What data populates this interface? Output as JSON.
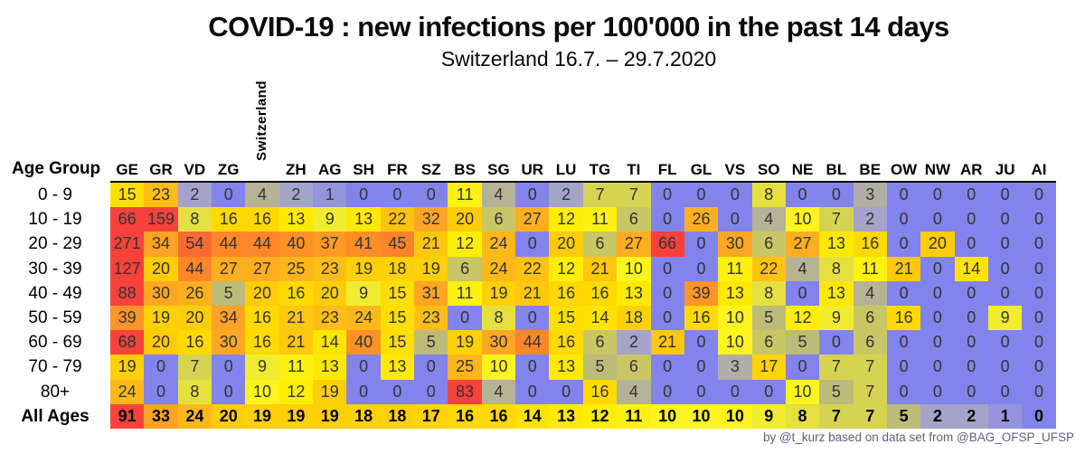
{
  "title": "COVID-19 : new infections per 100'000 in the past 14 days",
  "subtitle": "Switzerland 16.7. – 29.7.2020",
  "credit": "by @t_kurz based on data set from @BAG_OFSP_UFSP",
  "chart_data": {
    "type": "heatmap",
    "row_header_label": "Age Group",
    "columns": [
      "GE",
      "GR",
      "VD",
      "ZG",
      "Switzerland",
      "ZH",
      "AG",
      "SH",
      "FR",
      "SZ",
      "BS",
      "SG",
      "UR",
      "LU",
      "TG",
      "TI",
      "FL",
      "GL",
      "VS",
      "SO",
      "NE",
      "BL",
      "BE",
      "OW",
      "NW",
      "AR",
      "JU",
      "AI"
    ],
    "highlight_column": "Switzerland",
    "rows": [
      {
        "label": "0 - 9",
        "bold": false,
        "values": [
          15,
          23,
          2,
          0,
          4,
          2,
          1,
          0,
          0,
          0,
          11,
          4,
          0,
          2,
          7,
          7,
          0,
          0,
          0,
          8,
          0,
          0,
          3,
          0,
          0,
          0,
          0,
          0
        ]
      },
      {
        "label": "10 - 19",
        "bold": false,
        "values": [
          66,
          159,
          8,
          16,
          16,
          13,
          9,
          13,
          22,
          32,
          20,
          6,
          27,
          12,
          11,
          6,
          0,
          26,
          0,
          4,
          10,
          7,
          2,
          0,
          0,
          0,
          0,
          0
        ]
      },
      {
        "label": "20 - 29",
        "bold": false,
        "values": [
          271,
          34,
          54,
          44,
          44,
          40,
          37,
          41,
          45,
          21,
          12,
          24,
          0,
          20,
          6,
          27,
          66,
          0,
          30,
          6,
          27,
          13,
          16,
          0,
          20,
          0,
          0,
          0
        ]
      },
      {
        "label": "30 - 39",
        "bold": false,
        "values": [
          127,
          20,
          44,
          27,
          27,
          25,
          23,
          19,
          18,
          19,
          6,
          24,
          22,
          12,
          21,
          10,
          0,
          0,
          11,
          22,
          4,
          8,
          11,
          21,
          0,
          14,
          0,
          0
        ]
      },
      {
        "label": "40 - 49",
        "bold": false,
        "values": [
          88,
          30,
          26,
          5,
          20,
          16,
          20,
          9,
          15,
          31,
          11,
          19,
          21,
          16,
          16,
          13,
          0,
          39,
          13,
          8,
          0,
          13,
          4,
          0,
          0,
          0,
          0,
          0
        ]
      },
      {
        "label": "50 - 59",
        "bold": false,
        "values": [
          39,
          19,
          20,
          34,
          16,
          21,
          23,
          24,
          15,
          23,
          0,
          8,
          0,
          15,
          14,
          18,
          0,
          16,
          10,
          5,
          12,
          9,
          6,
          16,
          0,
          0,
          9,
          0
        ]
      },
      {
        "label": "60 - 69",
        "bold": false,
        "values": [
          68,
          20,
          16,
          30,
          16,
          21,
          14,
          40,
          15,
          5,
          19,
          30,
          44,
          16,
          6,
          2,
          21,
          0,
          10,
          6,
          5,
          0,
          6,
          0,
          0,
          0,
          0,
          0
        ]
      },
      {
        "label": "70 - 79",
        "bold": false,
        "values": [
          19,
          0,
          7,
          0,
          9,
          11,
          13,
          0,
          13,
          0,
          25,
          10,
          0,
          13,
          5,
          6,
          0,
          0,
          3,
          17,
          0,
          7,
          7,
          0,
          0,
          0,
          0,
          0
        ]
      },
      {
        "label": "80+",
        "bold": false,
        "values": [
          24,
          0,
          8,
          0,
          10,
          12,
          19,
          0,
          0,
          0,
          83,
          4,
          0,
          0,
          16,
          4,
          0,
          0,
          0,
          0,
          10,
          5,
          7,
          0,
          0,
          0,
          0,
          0
        ]
      },
      {
        "label": "All Ages",
        "bold": true,
        "values": [
          91,
          33,
          24,
          20,
          19,
          19,
          19,
          18,
          18,
          17,
          16,
          16,
          14,
          13,
          12,
          11,
          10,
          10,
          10,
          9,
          8,
          7,
          7,
          5,
          2,
          2,
          1,
          0
        ]
      }
    ],
    "colormap_stops": [
      [
        0,
        "#8383ec"
      ],
      [
        1,
        "#9494dd"
      ],
      [
        2,
        "#a4a4cb"
      ],
      [
        3,
        "#b0aea6"
      ],
      [
        4,
        "#b5b396"
      ],
      [
        5,
        "#bdbb78"
      ],
      [
        6,
        "#c9c765"
      ],
      [
        7,
        "#d6d352"
      ],
      [
        8,
        "#e4e040"
      ],
      [
        9,
        "#f0ec30"
      ],
      [
        10,
        "#fcf41c"
      ],
      [
        12,
        "#feee06"
      ],
      [
        14,
        "#ffe300"
      ],
      [
        17,
        "#ffd400"
      ],
      [
        20,
        "#ffcc0a"
      ],
      [
        24,
        "#ffb818"
      ],
      [
        28,
        "#ffaa22"
      ],
      [
        34,
        "#ffa226"
      ],
      [
        40,
        "#ff9127"
      ],
      [
        45,
        "#ff8329"
      ],
      [
        54,
        "#fc6a33"
      ],
      [
        60,
        "#fa5137"
      ],
      [
        66,
        "#f9423c"
      ],
      [
        280,
        "#f9423c"
      ]
    ],
    "legend": "none",
    "grid": "off"
  }
}
